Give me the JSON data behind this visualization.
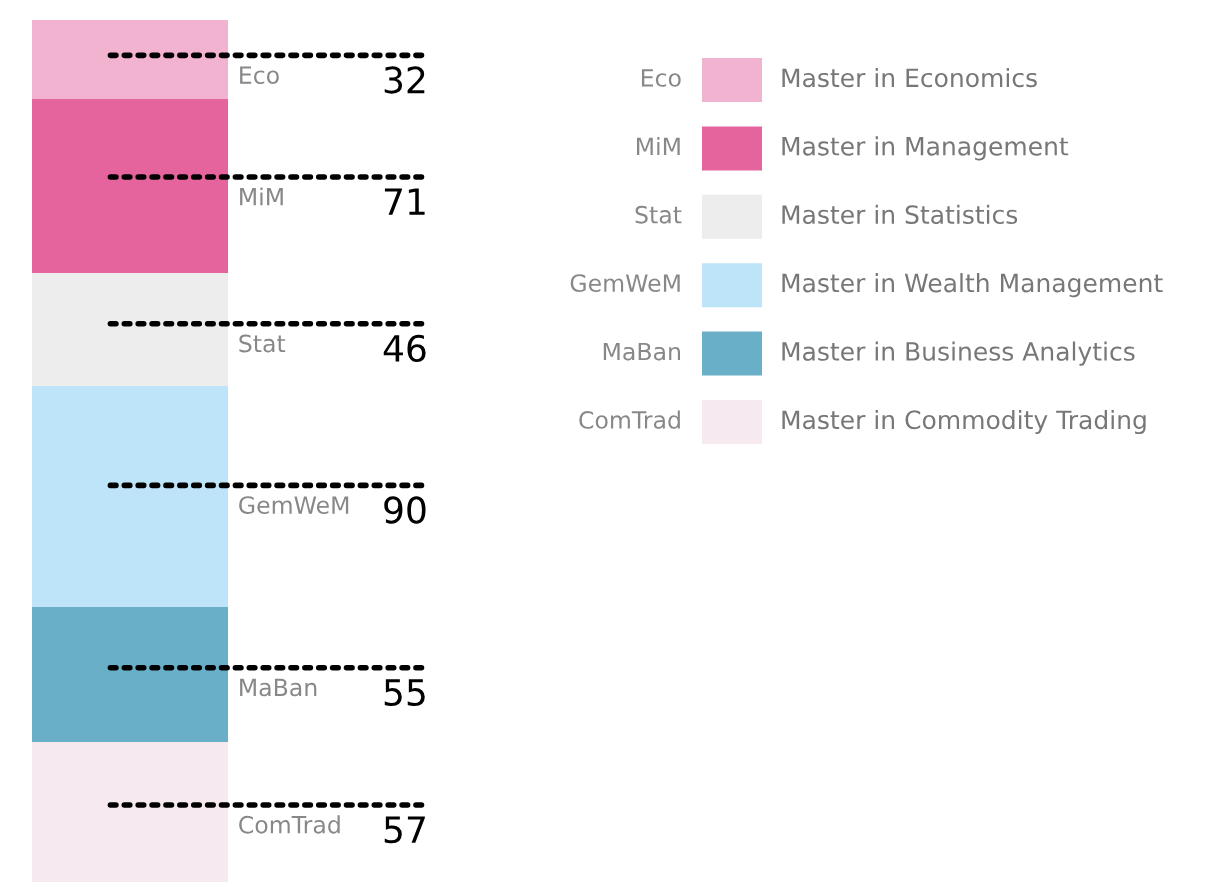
{
  "chart_data": {
    "type": "bar",
    "stacked": true,
    "categories": [
      null
    ],
    "legend": "right",
    "series": [
      {
        "name": "ComTrad",
        "color": "#f7e9f0",
        "values": [
          57
        ],
        "value_labels": [
          "57"
        ]
      },
      {
        "name": "MaBan",
        "color": "#6aafc8",
        "values": [
          55
        ],
        "value_labels": [
          "55"
        ]
      },
      {
        "name": "GemWeM",
        "color": "#bde4f8",
        "values": [
          90
        ],
        "value_labels": [
          "90"
        ]
      },
      {
        "name": "Stat",
        "color": "#ededed",
        "values": [
          46
        ],
        "value_labels": [
          "46"
        ]
      },
      {
        "name": "MiM",
        "color": "#e5649e",
        "values": [
          71
        ],
        "value_labels": [
          "71"
        ]
      },
      {
        "name": "Eco",
        "color": "#f2b3d1",
        "values": [
          32
        ],
        "value_labels": [
          "32"
        ]
      }
    ],
    "annotations": [
      "Master in Commodity Trading",
      "Master in Business Analytics",
      "Master in Wealth Management",
      "Master in Statistics",
      "Master in Management",
      "Master in Economics"
    ]
  }
}
